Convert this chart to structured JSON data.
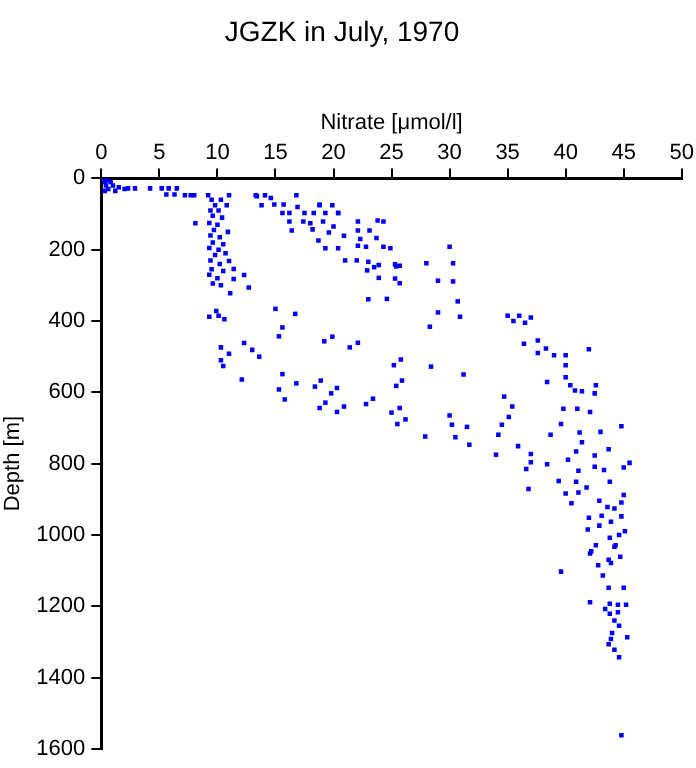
{
  "chart_data": {
    "type": "scatter",
    "title": "JGZK in July, 1970",
    "xlabel": "Nitrate [μmol/l]",
    "ylabel": "Depth [m]",
    "xlim": [
      0,
      50
    ],
    "xticks": [
      0,
      5,
      10,
      15,
      20,
      25,
      30,
      35,
      40,
      45,
      50
    ],
    "ylim": [
      1600,
      0
    ],
    "yticks": [
      0,
      200,
      400,
      600,
      800,
      1000,
      1200,
      1400,
      1600
    ],
    "grid": false,
    "legend": false,
    "marker": "square",
    "series": [
      {
        "color": "#0000ff",
        "x": [
          0.2,
          0.5,
          0.3,
          0.8,
          0.4,
          1,
          0.6,
          1.5,
          0.3,
          1.2,
          2,
          2.3,
          2.9,
          4.2,
          5.2,
          5.8,
          6.5,
          5.6,
          6.3,
          7.2,
          7.7,
          8,
          9.2,
          11,
          13.3,
          16.8,
          14.1,
          9.5,
          10.3,
          9.8,
          10.8,
          9.4,
          10.1,
          8.1,
          9.6,
          10.4,
          9.3,
          10,
          9.7,
          10.9,
          9.4,
          10.2,
          9.6,
          10.5,
          9.3,
          10.1,
          9.8,
          10.7,
          9.4,
          11,
          10.2,
          9.5,
          10.5,
          11.4,
          9.3,
          12.3,
          10,
          11.4,
          9.6,
          12.7,
          10.3,
          11.1,
          9.9,
          9.3,
          10.1,
          10.6,
          13.4,
          14.6,
          13.8,
          14.9,
          15.7,
          16.9,
          15.6,
          16.2,
          17.5,
          18.3,
          18.8,
          19.9,
          19.3,
          20.4,
          16.2,
          17.4,
          18,
          19.1,
          20,
          22.1,
          24.3,
          16.4,
          18.2,
          19.6,
          18.7,
          20.9,
          22.1,
          23.1,
          22.3,
          23.7,
          19.3,
          20.4,
          22.1,
          22.8,
          24.3,
          22,
          23,
          23.5,
          22.9,
          24.6,
          25.3,
          25.3,
          25.7,
          18.8,
          20.4,
          23.8,
          24.9,
          30,
          21,
          23.9,
          25.4,
          28,
          30.3,
          23.9,
          25.7,
          29,
          30.3,
          23,
          30.7,
          29,
          30.9,
          28.3,
          19.9,
          22.1,
          25.8,
          28.4,
          31.2,
          18.9,
          20.3,
          19.3,
          20.9,
          23.4,
          25.9,
          25.7,
          26.2,
          27.9,
          30,
          30.2,
          31.5,
          30.5,
          31.7,
          34,
          34.2,
          34.5,
          34.7,
          35.4,
          35.1,
          35.9,
          37,
          37,
          36.6,
          36.8,
          15,
          16.7,
          15.6,
          15.3,
          19.2,
          21.4,
          10.3,
          12.3,
          13,
          13.6,
          11,
          10.3,
          10.5,
          12.1,
          15.6,
          15.3,
          15.8,
          16.8,
          18.4,
          19.8,
          18.8,
          20.3,
          22.8,
          25,
          25.5,
          25.2,
          25.4,
          35,
          36,
          37,
          35.5,
          36.5,
          37.6,
          36.4,
          38.3,
          37.6,
          39,
          40,
          40,
          42,
          40,
          38.4,
          40.4,
          42.6,
          40.8,
          41.4,
          42.5,
          39.8,
          41,
          42.1,
          39.6,
          41.2,
          43,
          44.8,
          38.7,
          41.4,
          43.7,
          40.9,
          42.5,
          45.5,
          38.4,
          40.2,
          41.1,
          42.5,
          43.3,
          45,
          39.4,
          40.9,
          43.8,
          41.8,
          40,
          41.1,
          45,
          40.5,
          42.9,
          43.6,
          44.8,
          44.2,
          42,
          43.1,
          44.8,
          43.9,
          41.9,
          42.9,
          44.6,
          45.1,
          43.8,
          42.6,
          44.3,
          42.2,
          42.1,
          44.2,
          44.7,
          43.7,
          43.9,
          42.8,
          39.6,
          43.2,
          43.7,
          45,
          42.1,
          43.8,
          44.5,
          45.2,
          43.4,
          43.8,
          44.5,
          44.2,
          44.6,
          44,
          45.3,
          43.9,
          43.7,
          44.2,
          44.6,
          44.8
        ],
        "values": [
          0,
          5,
          10,
          10,
          20,
          20,
          30,
          25,
          35,
          35,
          30,
          28,
          28,
          28,
          28,
          28,
          28,
          45,
          45,
          47,
          47,
          47,
          47,
          47,
          47,
          47,
          47,
          60,
          60,
          75,
          75,
          90,
          90,
          126,
          105,
          110,
          125,
          130,
          145,
          150,
          160,
          165,
          180,
          185,
          195,
          200,
          215,
          210,
          230,
          232,
          240,
          255,
          260,
          254,
          270,
          271,
          280,
          282,
          295,
          306,
          300,
          322,
          372,
          388,
          385,
          395,
          50,
          55,
          75,
          73,
          73,
          80,
          97,
          97,
          97,
          97,
          75,
          75,
          97,
          97,
          121,
          121,
          126,
          121,
          135,
          121,
          121,
          146,
          143,
          152,
          174,
          161,
          146,
          146,
          170,
          167,
          196,
          196,
          189,
          192,
          192,
          230,
          234,
          249,
          258,
          338,
          281,
          241,
          245,
          73,
          97,
          118,
          196,
          192,
          230,
          243,
          247,
          238,
          238,
          279,
          294,
          287,
          289,
          339,
          345,
          376,
          388,
          416,
          444,
          461,
          508,
          528,
          550,
          567,
          588,
          629,
          640,
          618,
          567,
          644,
          676,
          724,
          665,
          691,
          697,
          726,
          747,
          775,
          719,
          691,
          612,
          640,
          669,
          751,
          773,
          796,
          815,
          871,
          366,
          380,
          418,
          443,
          457,
          474,
          474,
          462,
          481,
          500,
          492,
          510,
          526,
          564,
          549,
          592,
          620,
          575,
          584,
          603,
          644,
          655,
          633,
          657,
          689,
          524,
          582,
          385,
          385,
          390,
          400,
          405,
          455,
          464,
          477,
          490,
          496,
          496,
          524,
          479,
          558,
          571,
          580,
          580,
          595,
          597,
          603,
          646,
          646,
          655,
          689,
          713,
          711,
          695,
          719,
          740,
          760,
          766,
          777,
          798,
          802,
          789,
          820,
          809,
          818,
          811,
          849,
          851,
          851,
          867,
          884,
          881,
          888,
          911,
          904,
          922,
          909,
          926,
          952,
          946,
          948,
          963,
          985,
          974,
          1000,
          990,
          1008,
          1029,
          1029,
          1046,
          1052,
          1033,
          1061,
          1070,
          1079,
          1085,
          1103,
          1114,
          1148,
          1148,
          1189,
          1193,
          1196,
          1196,
          1208,
          1221,
          1217,
          1240,
          1255,
          1275,
          1287,
          1292,
          1307,
          1322,
          1343,
          1562
        ]
      }
    ]
  }
}
